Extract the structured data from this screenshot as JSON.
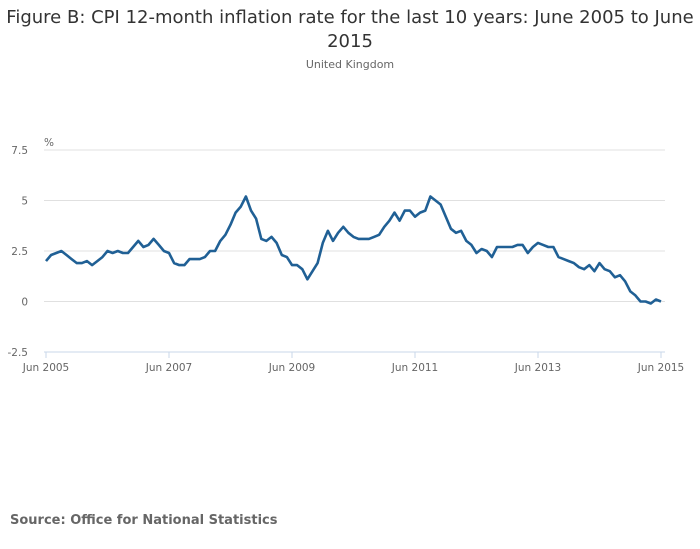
{
  "chart_data": {
    "type": "line",
    "title": "Figure B: CPI 12-month inflation rate for the last 10 years: June 2005 to June 2015",
    "subtitle": "United Kingdom",
    "ylabel": "%",
    "xlabel": "",
    "ylim": [
      -2.5,
      7.5
    ],
    "yticks": [
      7.5,
      5,
      2.5,
      0,
      -2.5
    ],
    "ytick_labels": [
      "7.5",
      "5",
      "2.5",
      "0",
      "-2.5"
    ],
    "xticks": [
      "Jun 2005",
      "Jun 2007",
      "Jun 2009",
      "Jun 2011",
      "Jun 2013",
      "Jun 2015"
    ],
    "grid": true,
    "start": "Jun 2005",
    "end": "Jun 2015",
    "series": [
      {
        "name": "CPI 12-month rate",
        "color": "#206095",
        "values": [
          2.0,
          2.3,
          2.4,
          2.5,
          2.3,
          2.1,
          1.9,
          1.9,
          2.0,
          1.8,
          2.0,
          2.2,
          2.5,
          2.4,
          2.5,
          2.4,
          2.4,
          2.7,
          3.0,
          2.7,
          2.8,
          3.1,
          2.8,
          2.5,
          2.4,
          1.9,
          1.8,
          1.8,
          2.1,
          2.1,
          2.1,
          2.2,
          2.5,
          2.5,
          3.0,
          3.3,
          3.8,
          4.4,
          4.7,
          5.2,
          4.5,
          4.1,
          3.1,
          3.0,
          3.2,
          2.9,
          2.3,
          2.2,
          1.8,
          1.8,
          1.6,
          1.1,
          1.5,
          1.9,
          2.9,
          3.5,
          3.0,
          3.4,
          3.7,
          3.4,
          3.2,
          3.1,
          3.1,
          3.1,
          3.2,
          3.3,
          3.7,
          4.0,
          4.4,
          4.0,
          4.5,
          4.5,
          4.2,
          4.4,
          4.5,
          5.2,
          5.0,
          4.8,
          4.2,
          3.6,
          3.4,
          3.5,
          3.0,
          2.8,
          2.4,
          2.6,
          2.5,
          2.2,
          2.7,
          2.7,
          2.7,
          2.7,
          2.8,
          2.8,
          2.4,
          2.7,
          2.9,
          2.8,
          2.7,
          2.7,
          2.2,
          2.1,
          2.0,
          1.9,
          1.7,
          1.6,
          1.8,
          1.5,
          1.9,
          1.6,
          1.5,
          1.2,
          1.3,
          1.0,
          0.5,
          0.3,
          0.0,
          0.0,
          -0.1,
          0.1,
          0.0
        ]
      }
    ]
  },
  "source": "Source: Office for National Statistics"
}
